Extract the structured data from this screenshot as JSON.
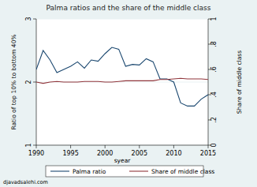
{
  "chart_data": {
    "type": "line",
    "title": "Palma ratios and the share of the middle class",
    "xlabel": "syear",
    "ylabel": "Ratio of top 10% to bottom 40%",
    "y2label": "Share of middle class",
    "annotations": [
      "djavadsalehi.com"
    ],
    "x": [
      1990,
      1991,
      1992,
      1993,
      1994,
      1995,
      1996,
      1997,
      1998,
      1999,
      2000,
      2001,
      2002,
      2003,
      2004,
      2005,
      2006,
      2007,
      2008,
      2009,
      2010,
      2011,
      2012,
      2013,
      2014,
      2015
    ],
    "xlim": [
      1990,
      2015
    ],
    "xticks": [
      1990,
      1995,
      2000,
      2005,
      2010,
      2015
    ],
    "ylim": [
      1,
      3
    ],
    "yticks": [
      1,
      2,
      3
    ],
    "y2lim": [
      0,
      1
    ],
    "y2ticks": [
      0,
      {
        "value": 0.2,
        "label": ".2"
      },
      {
        "value": 0.4,
        "label": ".4"
      },
      {
        "value": 0.6,
        "label": ".6"
      },
      {
        "value": 0.8,
        "label": ".8"
      },
      1
    ],
    "grid": true,
    "legend": "bottom",
    "series": [
      {
        "name": "Palma ratio",
        "color": "#1a476f",
        "values": [
          2.2,
          2.5,
          2.35,
          2.15,
          2.2,
          2.25,
          2.32,
          2.22,
          2.35,
          2.33,
          2.45,
          2.55,
          2.52,
          2.25,
          2.28,
          2.27,
          2.37,
          2.32,
          2.05,
          2.05,
          2.0,
          1.67,
          1.62,
          1.62,
          1.73,
          1.8
        ]
      },
      {
        "name": "Share of middle class",
        "color": "#90353b",
        "axis": "y2",
        "values": [
          0.5,
          0.49,
          0.5,
          0.505,
          0.5,
          0.5,
          0.5,
          0.505,
          0.505,
          0.505,
          0.5,
          0.5,
          0.505,
          0.51,
          0.51,
          0.51,
          0.51,
          0.51,
          0.52,
          0.52,
          0.525,
          0.53,
          0.525,
          0.525,
          0.525,
          0.52
        ]
      }
    ]
  }
}
